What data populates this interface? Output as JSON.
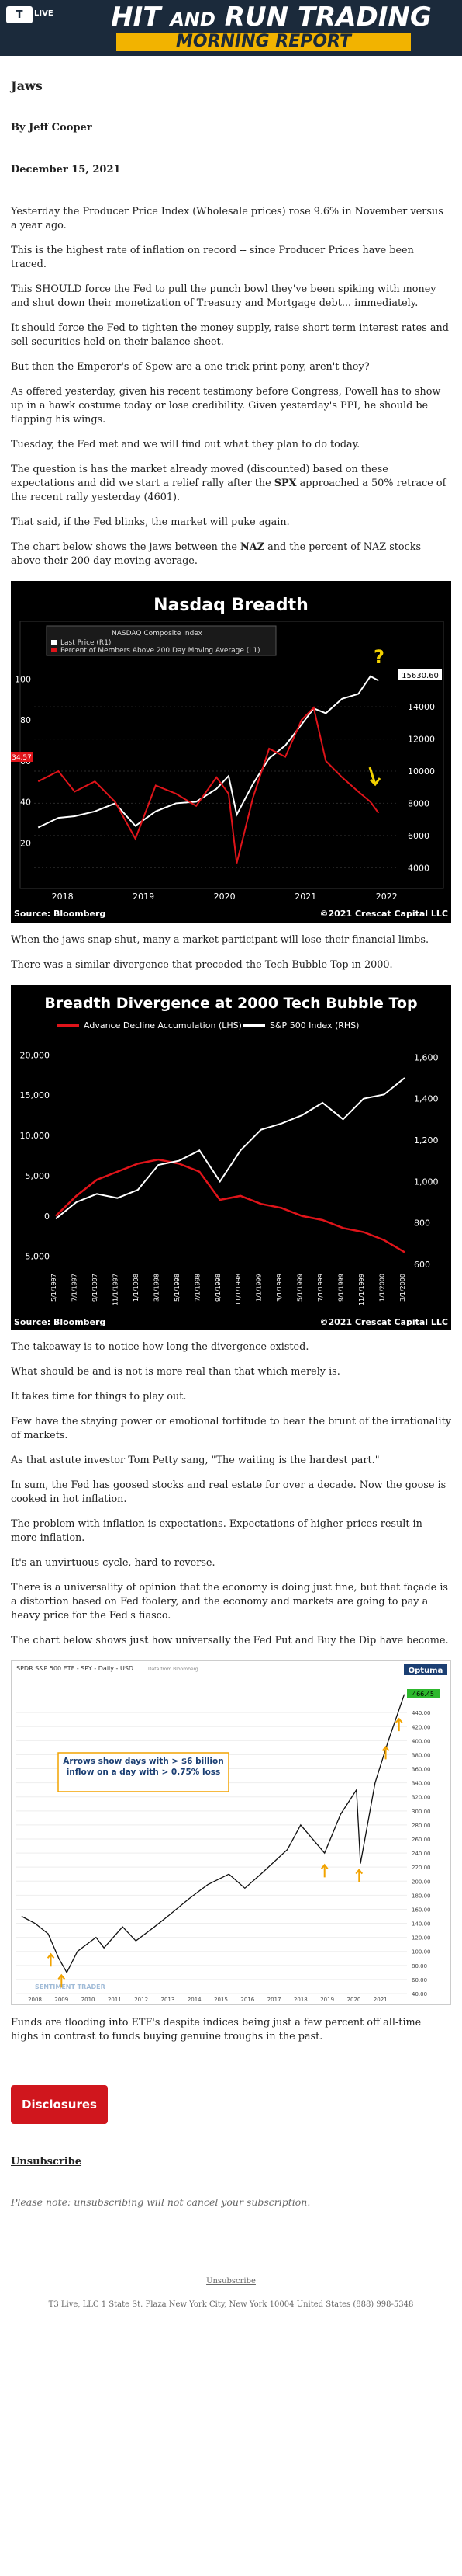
{
  "header": {
    "logo_text": "T",
    "logo_sub": "LIVE",
    "title_a": "HIT",
    "title_b": "AND",
    "title_c": "RUN TRADING",
    "subtitle": "MORNING REPORT",
    "bg_color": "#1b2a3b",
    "accent_color": "#f2b300"
  },
  "article": {
    "headline": "Jaws",
    "byline": "By Jeff Cooper",
    "date": "December 15, 2021",
    "p1": "Yesterday the Producer Price Index (Wholesale prices) rose 9.6% in November versus a year ago.",
    "p2": "This is the highest rate of inflation on record -- since Producer Prices have been traced.",
    "p3": "This SHOULD force the Fed to pull the punch bowl they've been spiking with money and shut down their monetization of Treasury and Mortgage debt... immediately.",
    "p4": "It should force the Fed to tighten the money supply, raise short term interest rates and sell securities held on their balance sheet.",
    "p5": "But then the Emperor's of Spew are a one trick print pony, aren't they?",
    "p6": "As offered yesterday, given his recent testimony before Congress, Powell has to show up in a hawk costume today or lose credibility. Given yesterday's PPI, he should be flapping his wings.",
    "p7": "Tuesday, the Fed met and we will find out what they plan to do today.",
    "p8_a": "The question is has the market already moved (discounted) based on these expectations and did we start a relief rally after the ",
    "p8_b": "SPX",
    "p8_c": " approached a 50% retrace of the recent rally yesterday (4601).",
    "p9": "That said, if the Fed blinks, the market will puke again.",
    "p10_a": "The chart below shows the jaws between the ",
    "p10_b": "NAZ",
    "p10_c": " and the percent of NAZ stocks above their 200 day moving average.",
    "p11": "When the jaws snap shut, many a market participant will lose their financial limbs.",
    "p12": "There was a similar divergence that preceded the Tech Bubble Top in 2000.",
    "p13": "The takeaway is to notice how long the divergence existed.",
    "p14": "What should be and is not is more real than that which merely is.",
    "p15": "It takes time for things to play out.",
    "p16": "Few have the staying power or emotional fortitude to bear the brunt of the irrationality of markets.",
    "p17": "As that astute investor Tom Petty sang, \"The waiting is the hardest part.\"",
    "p18": "In sum, the Fed has goosed stocks and real estate for over a decade. Now the goose is cooked in hot inflation.",
    "p19": "The problem with inflation is expectations. Expectations of higher prices result in more inflation.",
    "p20": "It's an unvirtuous cycle, hard to reverse.",
    "p21": "There is a universality of opinion that the economy is doing just fine, but that façade is a distortion based on Fed foolery, and the economy and markets are going to pay a heavy price for the Fed's fiasco.",
    "p22": "The chart below shows just how universally the Fed Put and Buy the Dip have become.",
    "p23": "Funds are flooding into ETF's despite indices being just a few percent off all-time highs in contrast to funds buying genuine troughs in the past."
  },
  "chart1": {
    "title": "Nasdaq Breadth",
    "legend_title": "NASDAQ Composite Index",
    "legend_1": "Last Price (R1)",
    "legend_2": "Percent of Members Above 200 Day Moving Average (L1)",
    "left_ticks": [
      "100",
      "80",
      "60",
      "40",
      "20"
    ],
    "right_ticks": [
      "14000",
      "12000",
      "10000",
      "8000",
      "6000",
      "4000"
    ],
    "x_ticks": [
      "2018",
      "2019",
      "2020",
      "2021",
      "2022"
    ],
    "last_label": "15630.60",
    "left_last": "34.57",
    "question": "?",
    "source": "Source: Bloomberg",
    "credit": "©2021 Crescat Capital LLC",
    "price_color": "#ffffff",
    "pct_color": "#e0141a",
    "chart_data": {
      "type": "line",
      "x": [
        "2017.75",
        "2018.0",
        "2018.2",
        "2018.45",
        "2018.7",
        "2018.95",
        "2019.2",
        "2019.45",
        "2019.7",
        "2019.95",
        "2020.1",
        "2020.2",
        "2020.4",
        "2020.6",
        "2020.8",
        "2021.0",
        "2021.15",
        "2021.3",
        "2021.5",
        "2021.7",
        "2021.85",
        "2021.95"
      ],
      "series": [
        {
          "name": "Last Price (R1)",
          "values": [
            6500,
            7100,
            7200,
            7500,
            8000,
            6600,
            7500,
            8000,
            8100,
            8900,
            9700,
            7300,
            9200,
            10800,
            11600,
            12900,
            13900,
            13600,
            14500,
            14800,
            15900,
            15630
          ]
        },
        {
          "name": "Percent of Members Above 200 Day Moving Average (L1)",
          "values": [
            50,
            55,
            45,
            50,
            40,
            22,
            48,
            44,
            38,
            52,
            44,
            10,
            42,
            66,
            62,
            80,
            86,
            60,
            52,
            45,
            40,
            34.57
          ]
        }
      ],
      "ylim_left": [
        0,
        110
      ],
      "ylim_right": [
        3000,
        17000
      ]
    }
  },
  "chart2": {
    "title": "Breadth Divergence at 2000 Tech Bubble Top",
    "legend_1": "Advance Decline Accumulation (LHS)",
    "legend_2": "S&P 500 Index (RHS)",
    "left_ticks": [
      "20,000",
      "15,000",
      "10,000",
      "5,000",
      "0",
      "-5,000"
    ],
    "right_ticks": [
      "1,600",
      "1,400",
      "1,200",
      "1,000",
      "800",
      "600"
    ],
    "x_ticks": [
      "5/1/1997",
      "7/1/1997",
      "9/1/1997",
      "11/1/1997",
      "1/1/1998",
      "3/1/1998",
      "5/1/1998",
      "7/1/1998",
      "9/1/1998",
      "11/1/1998",
      "1/1/1999",
      "3/1/1999",
      "5/1/1999",
      "7/1/1999",
      "9/1/1999",
      "11/1/1999",
      "1/1/2000",
      "3/1/2000"
    ],
    "source": "Source: Bloomberg",
    "credit": "©2021 Crescat Capital LLC",
    "ad_color": "#e0141a",
    "spx_color": "#ffffff",
    "chart_data": {
      "type": "line",
      "x": [
        "5/1997",
        "7/1997",
        "9/1997",
        "11/1997",
        "1/1998",
        "3/1998",
        "5/1998",
        "7/1998",
        "9/1998",
        "11/1998",
        "1/1999",
        "3/1999",
        "5/1999",
        "7/1999",
        "9/1999",
        "11/1999",
        "1/2000",
        "3/2000"
      ],
      "series": [
        {
          "name": "Advance Decline Accumulation (LHS)",
          "values": [
            0,
            2500,
            4500,
            5500,
            6500,
            7000,
            6500,
            5500,
            2000,
            2500,
            1500,
            1000,
            0,
            -500,
            -1500,
            -2000,
            -3000,
            -4500
          ]
        },
        {
          "name": "S&P 500 Index (RHS)",
          "values": [
            820,
            900,
            940,
            920,
            960,
            1080,
            1100,
            1150,
            1000,
            1150,
            1250,
            1280,
            1320,
            1380,
            1300,
            1400,
            1420,
            1500
          ]
        }
      ],
      "ylim_left": [
        -6000,
        21000
      ],
      "ylim_right": [
        600,
        1650
      ]
    }
  },
  "chart3": {
    "header": "SPDR S&P 500 ETF - SPY - Daily - USD",
    "header_sub": "Data from Bloomberg",
    "brand": "Optuma",
    "annotation": "Arrows show days with > $6 billion inflow on a day with > 0.75% loss",
    "x_ticks": [
      "2008",
      "2009",
      "2010",
      "2011",
      "2012",
      "2013",
      "2014",
      "2015",
      "2016",
      "2017",
      "2018",
      "2019",
      "2020",
      "2021"
    ],
    "right_ticks": [
      "440.00",
      "420.00",
      "400.00",
      "380.00",
      "360.00",
      "340.00",
      "320.00",
      "300.00",
      "280.00",
      "260.00",
      "240.00",
      "220.00",
      "200.00",
      "180.00",
      "160.00",
      "140.00",
      "120.00",
      "100.00",
      "80.00",
      "60.00",
      "40.00"
    ],
    "last_value": "466.45",
    "watermark": "SENTIMENT TRADER",
    "arrow_color": "#f2a300",
    "chart_data": {
      "type": "line",
      "x": [
        "2007.5",
        "2008.0",
        "2008.5",
        "2008.9",
        "2009.2",
        "2009.6",
        "2010.3",
        "2010.6",
        "2011.3",
        "2011.8",
        "2012.5",
        "2013.0",
        "2013.8",
        "2014.5",
        "2015.3",
        "2015.9",
        "2016.5",
        "2017.5",
        "2018.0",
        "2018.9",
        "2019.5",
        "2020.1",
        "2020.25",
        "2020.8",
        "2021.3",
        "2021.9"
      ],
      "values": [
        150,
        140,
        125,
        90,
        70,
        100,
        120,
        105,
        135,
        115,
        135,
        150,
        175,
        195,
        210,
        190,
        210,
        245,
        280,
        240,
        295,
        330,
        225,
        340,
        400,
        466
      ],
      "ylim": [
        40,
        480
      ]
    }
  },
  "footer": {
    "button": "Disclosures",
    "unsubscribe": "Unsubscribe",
    "note": "Please note: unsubscribing will not cancel your subscription.",
    "footer_link": "Unsubscribe",
    "address": "T3 Live, LLC 1 State St. Plaza New York City, New York 10004 United States (888) 998-5348"
  }
}
